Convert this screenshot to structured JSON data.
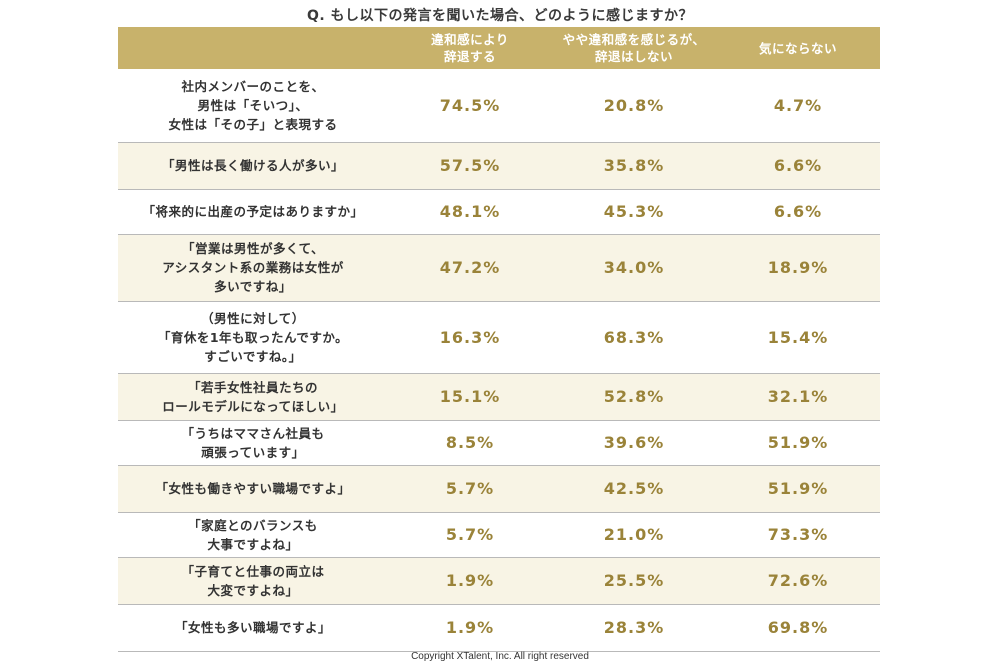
{
  "title": "Q. もし以下の発言を聞いた場合、どのように感じますか？",
  "copyright": "Copyright XTalent, Inc. All right reserved",
  "colors": {
    "header_bg": "#c8b26b",
    "value_text": "#9a8339",
    "alt_row_bg": "#f8f4e5"
  },
  "chart_data": {
    "type": "table",
    "title": "Q. もし以下の発言を聞いた場合、どのように感じますか？",
    "columns": [
      "違和感により\n辞退する",
      "やや違和感を感じるが、\n辞退はしない",
      "気にならない"
    ],
    "rows": [
      {
        "label": "社内メンバーのことを、\n男性は「そいつ」、\n女性は「その子」と表現する",
        "values": [
          "74.5%",
          "20.8%",
          "4.7%"
        ]
      },
      {
        "label": "「男性は長く働ける人が多い」",
        "values": [
          "57.5%",
          "35.8%",
          "6.6%"
        ]
      },
      {
        "label": "「将来的に出産の予定はありますか」",
        "values": [
          "48.1%",
          "45.3%",
          "6.6%"
        ]
      },
      {
        "label": "「営業は男性が多くて、\nアシスタント系の業務は女性が\n多いですね」",
        "values": [
          "47.2%",
          "34.0%",
          "18.9%"
        ]
      },
      {
        "label": "（男性に対して）\n「育休を1年も取ったんですか。\nすごいですね。」",
        "values": [
          "16.3%",
          "68.3%",
          "15.4%"
        ]
      },
      {
        "label": "「若手女性社員たちの\nロールモデルになってほしい」",
        "values": [
          "15.1%",
          "52.8%",
          "32.1%"
        ]
      },
      {
        "label": "「うちはママさん社員も\n頑張っています」",
        "values": [
          "8.5%",
          "39.6%",
          "51.9%"
        ]
      },
      {
        "label": "「女性も働きやすい職場ですよ」",
        "values": [
          "5.7%",
          "42.5%",
          "51.9%"
        ]
      },
      {
        "label": "「家庭とのバランスも\n大事ですよね」",
        "values": [
          "5.7%",
          "21.0%",
          "73.3%"
        ]
      },
      {
        "label": "「子育てと仕事の両立は\n大変ですよね」",
        "values": [
          "1.9%",
          "25.5%",
          "72.6%"
        ]
      },
      {
        "label": "「女性も多い職場ですよ」",
        "values": [
          "1.9%",
          "28.3%",
          "69.8%"
        ]
      }
    ]
  }
}
